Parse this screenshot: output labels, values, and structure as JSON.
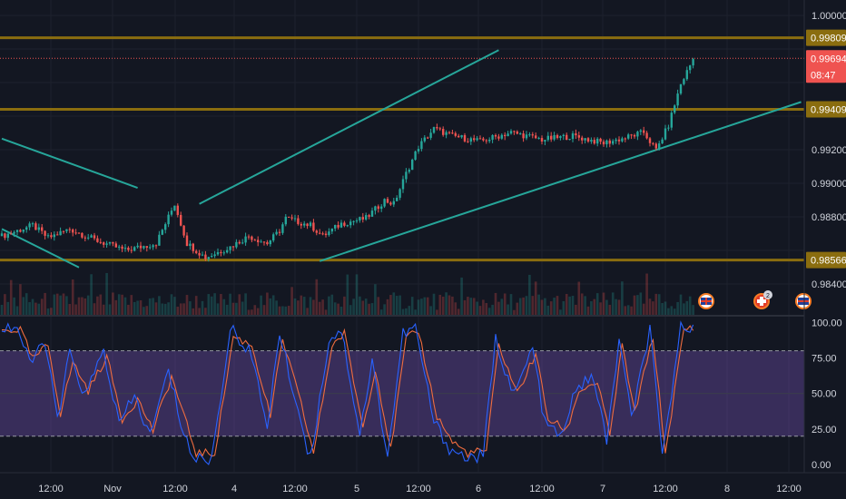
{
  "chart_data": {
    "type": "candlestick",
    "price_axis": {
      "ticks": [
        "1.00000",
        "0.99809",
        "0.99694",
        "0.99409",
        "0.99200",
        "0.99000",
        "0.98800",
        "0.98566",
        "0.98400"
      ],
      "range": [
        0.9826,
        1.0002
      ]
    },
    "tags": {
      "level_top": "0.99809",
      "current": "0.99694",
      "countdown": "08:47",
      "level_mid": "0.99409",
      "level_low": "0.98566"
    },
    "horizontal_levels": [
      0.99809,
      0.99409,
      0.98566
    ],
    "current_price": 0.99694,
    "time_axis": [
      "12:00",
      "Nov",
      "12:00",
      "4",
      "12:00",
      "5",
      "12:00",
      "6",
      "12:00",
      "7",
      "12:00",
      "8",
      "12:00"
    ],
    "trend_lines": [
      {
        "from": {
          "bar": 0,
          "price": 0.99245
        },
        "to": {
          "bar": 44,
          "price": 0.9897
        }
      },
      {
        "from": {
          "bar": 0,
          "price": 0.9874
        },
        "to": {
          "bar": 25,
          "price": 0.98525
        }
      },
      {
        "from": {
          "bar": 64,
          "price": 0.9888
        },
        "to": {
          "bar": 161,
          "price": 0.9974
        }
      },
      {
        "from": {
          "bar": 103,
          "price": 0.9856
        },
        "to": {
          "bar": 259,
          "price": 0.9945
        }
      }
    ],
    "oscillator": {
      "ticks": [
        "100.00",
        "75.00",
        "50.00",
        "25.00",
        "0.00"
      ],
      "range": [
        -5,
        104
      ],
      "upper_band": 80,
      "lower_band": 20
    },
    "series": [
      {
        "name": "close",
        "waypoints": [
          [
            0,
            0.987
          ],
          [
            10,
            0.9876
          ],
          [
            15,
            0.9869
          ],
          [
            22,
            0.9874
          ],
          [
            30,
            0.9868
          ],
          [
            40,
            0.9862
          ],
          [
            50,
            0.9866
          ],
          [
            56,
            0.9888
          ],
          [
            60,
            0.9866
          ],
          [
            66,
            0.9858
          ],
          [
            74,
            0.9864
          ],
          [
            80,
            0.987
          ],
          [
            86,
            0.9866
          ],
          [
            90,
            0.9873
          ],
          [
            92,
            0.988
          ],
          [
            100,
            0.9876
          ],
          [
            104,
            0.987
          ],
          [
            110,
            0.9877
          ],
          [
            118,
            0.988
          ],
          [
            124,
            0.989
          ],
          [
            127,
            0.9888
          ],
          [
            131,
            0.9905
          ],
          [
            135,
            0.992
          ],
          [
            140,
            0.993
          ],
          [
            146,
            0.9926
          ],
          [
            155,
            0.9923
          ],
          [
            165,
            0.9928
          ],
          [
            175,
            0.9924
          ],
          [
            185,
            0.9926
          ],
          [
            195,
            0.9922
          ],
          [
            202,
            0.9925
          ],
          [
            208,
            0.9928
          ],
          [
            212,
            0.9918
          ],
          [
            216,
            0.9932
          ],
          [
            220,
            0.9955
          ],
          [
            224,
            0.9969
          ]
        ]
      },
      {
        "name": "oscillator_k",
        "waypoints": [
          [
            0,
            96
          ],
          [
            5,
            97
          ],
          [
            9,
            70
          ],
          [
            14,
            88
          ],
          [
            18,
            30
          ],
          [
            22,
            78
          ],
          [
            27,
            48
          ],
          [
            33,
            80
          ],
          [
            38,
            28
          ],
          [
            43,
            48
          ],
          [
            48,
            20
          ],
          [
            54,
            66
          ],
          [
            58,
            30
          ],
          [
            62,
            4
          ],
          [
            68,
            4
          ],
          [
            74,
            95
          ],
          [
            80,
            82
          ],
          [
            86,
            28
          ],
          [
            90,
            92
          ],
          [
            96,
            38
          ],
          [
            100,
            4
          ],
          [
            106,
            88
          ],
          [
            110,
            95
          ],
          [
            116,
            22
          ],
          [
            120,
            72
          ],
          [
            125,
            6
          ],
          [
            130,
            92
          ],
          [
            134,
            96
          ],
          [
            140,
            30
          ],
          [
            145,
            12
          ],
          [
            150,
            5
          ],
          [
            156,
            6
          ],
          [
            160,
            88
          ],
          [
            166,
            48
          ],
          [
            172,
            82
          ],
          [
            176,
            28
          ],
          [
            182,
            20
          ],
          [
            186,
            55
          ],
          [
            192,
            60
          ],
          [
            196,
            15
          ],
          [
            200,
            88
          ],
          [
            204,
            32
          ],
          [
            210,
            95
          ],
          [
            214,
            4
          ],
          [
            220,
            98
          ],
          [
            224,
            98
          ]
        ]
      },
      {
        "name": "oscillator_d",
        "waypoints": [
          [
            0,
            94
          ],
          [
            6,
            95
          ],
          [
            10,
            74
          ],
          [
            15,
            84
          ],
          [
            19,
            36
          ],
          [
            23,
            72
          ],
          [
            28,
            52
          ],
          [
            34,
            76
          ],
          [
            39,
            32
          ],
          [
            44,
            46
          ],
          [
            49,
            24
          ],
          [
            55,
            62
          ],
          [
            59,
            34
          ],
          [
            63,
            8
          ],
          [
            69,
            8
          ],
          [
            75,
            90
          ],
          [
            81,
            84
          ],
          [
            87,
            34
          ],
          [
            91,
            88
          ],
          [
            97,
            42
          ],
          [
            101,
            8
          ],
          [
            107,
            84
          ],
          [
            111,
            92
          ],
          [
            117,
            26
          ],
          [
            121,
            68
          ],
          [
            126,
            10
          ],
          [
            131,
            88
          ],
          [
            135,
            94
          ],
          [
            141,
            34
          ],
          [
            146,
            16
          ],
          [
            151,
            8
          ],
          [
            157,
            10
          ],
          [
            161,
            84
          ],
          [
            167,
            50
          ],
          [
            173,
            78
          ],
          [
            177,
            32
          ],
          [
            183,
            24
          ],
          [
            187,
            52
          ],
          [
            193,
            58
          ],
          [
            197,
            20
          ],
          [
            201,
            84
          ],
          [
            205,
            36
          ],
          [
            211,
            90
          ],
          [
            215,
            8
          ],
          [
            221,
            95
          ],
          [
            224,
            96
          ]
        ]
      }
    ]
  }
}
